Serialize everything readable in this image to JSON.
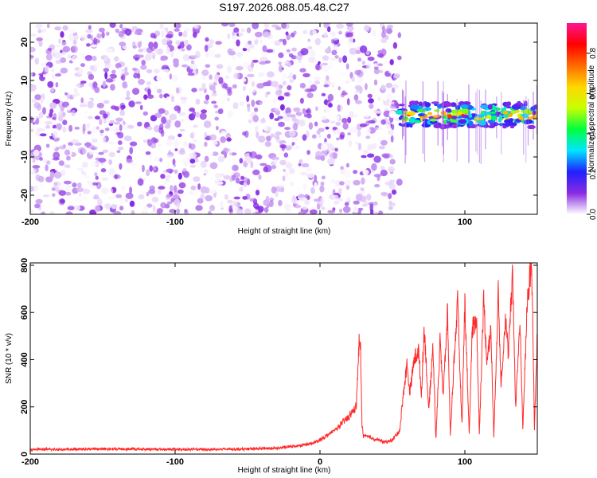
{
  "title": "S197.2026.088.05.48.C27",
  "chart_data": [
    {
      "type": "heatmap",
      "xlabel": "Height of straight line (km)",
      "ylabel": "Frequency (Hz)",
      "xlim": [
        -200,
        150
      ],
      "ylim": [
        -25,
        25
      ],
      "xticks": [
        -200,
        -100,
        0,
        100
      ],
      "yticks": [
        -20,
        -10,
        0,
        10,
        20
      ],
      "colorbar": {
        "label": "Normalized spectral amplitude",
        "range": [
          0,
          0.95
        ],
        "ticks": [
          0.0,
          0.2,
          0.4,
          0.6,
          0.8
        ],
        "tick_labels": [
          "0.0",
          "0.2",
          "0.4",
          "0.6",
          "0.8"
        ],
        "stops": [
          "#ffffff",
          "#8a2be2",
          "#2020ff",
          "#00e5ff",
          "#00ff40",
          "#c8ff00",
          "#ffd700",
          "#ff6a00",
          "#ff0000",
          "#ff1493"
        ]
      },
      "noise_region": {
        "x_range": [
          -200,
          55
        ],
        "y_range": [
          -25,
          25
        ],
        "amplitude_range": [
          0.0,
          0.12
        ]
      },
      "signal_band": {
        "x_range": [
          55,
          150
        ],
        "center_frequency_hz": 1,
        "half_width_hz": 2,
        "amplitude_range": [
          0.1,
          0.9
        ]
      }
    },
    {
      "type": "line",
      "xlabel": "Height of straight line (km)",
      "ylabel": "SNR (10 * v/v)",
      "xlim": [
        -200,
        150
      ],
      "ylim": [
        0,
        810
      ],
      "xticks": [
        -200,
        -100,
        0,
        100
      ],
      "yticks": [
        0,
        200,
        400,
        600,
        800
      ],
      "color": "#ff2a2a",
      "series": [
        {
          "x": [
            -200,
            -175,
            -150,
            -125,
            -100,
            -75,
            -50,
            -30,
            -15,
            -5,
            0,
            5,
            10,
            15,
            20,
            25,
            27,
            28,
            29,
            30,
            35,
            40,
            45,
            50,
            55,
            58,
            60,
            62,
            65,
            68,
            70,
            72,
            75,
            78,
            80,
            83,
            85,
            88,
            90,
            93,
            95,
            98,
            100,
            103,
            105,
            108,
            110,
            113,
            115,
            118,
            120,
            123,
            125,
            128,
            130,
            133,
            135,
            138,
            140,
            143,
            145,
            146,
            147,
            148,
            150
          ],
          "y": [
            20,
            20,
            22,
            21,
            20,
            20,
            22,
            25,
            35,
            45,
            60,
            80,
            100,
            130,
            160,
            200,
            470,
            440,
            120,
            80,
            70,
            60,
            50,
            60,
            100,
            280,
            380,
            260,
            400,
            440,
            250,
            540,
            180,
            460,
            60,
            500,
            240,
            600,
            80,
            450,
            640,
            120,
            650,
            80,
            520,
            580,
            90,
            660,
            400,
            520,
            70,
            680,
            300,
            580,
            420,
            760,
            200,
            560,
            110,
            630,
            760,
            810,
            540,
            100,
            510
          ]
        }
      ]
    }
  ]
}
